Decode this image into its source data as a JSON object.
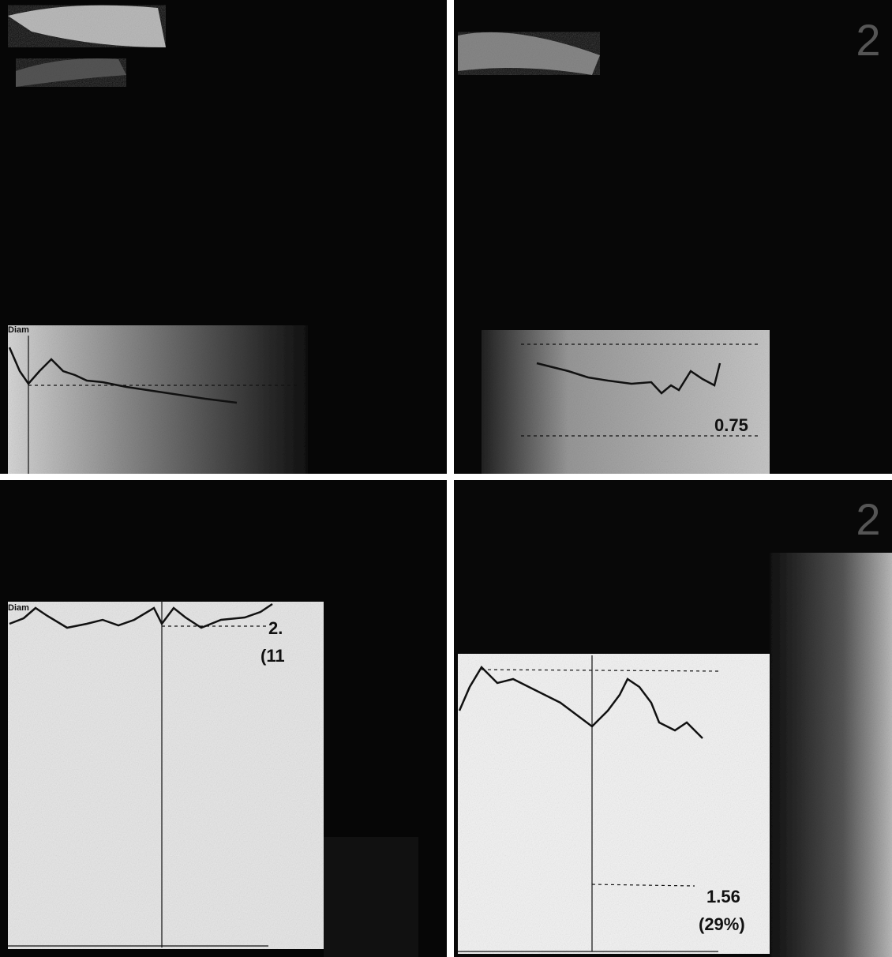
{
  "panels": [
    {
      "plot_label": "Diam"
    },
    {
      "frame_label": "2",
      "measurement": "0.75"
    },
    {
      "plot_label": "Diam",
      "measurement": "2.",
      "percent": "(11"
    },
    {
      "frame_label": "2",
      "measurement": "1.56",
      "percent": "(29%)"
    }
  ]
}
